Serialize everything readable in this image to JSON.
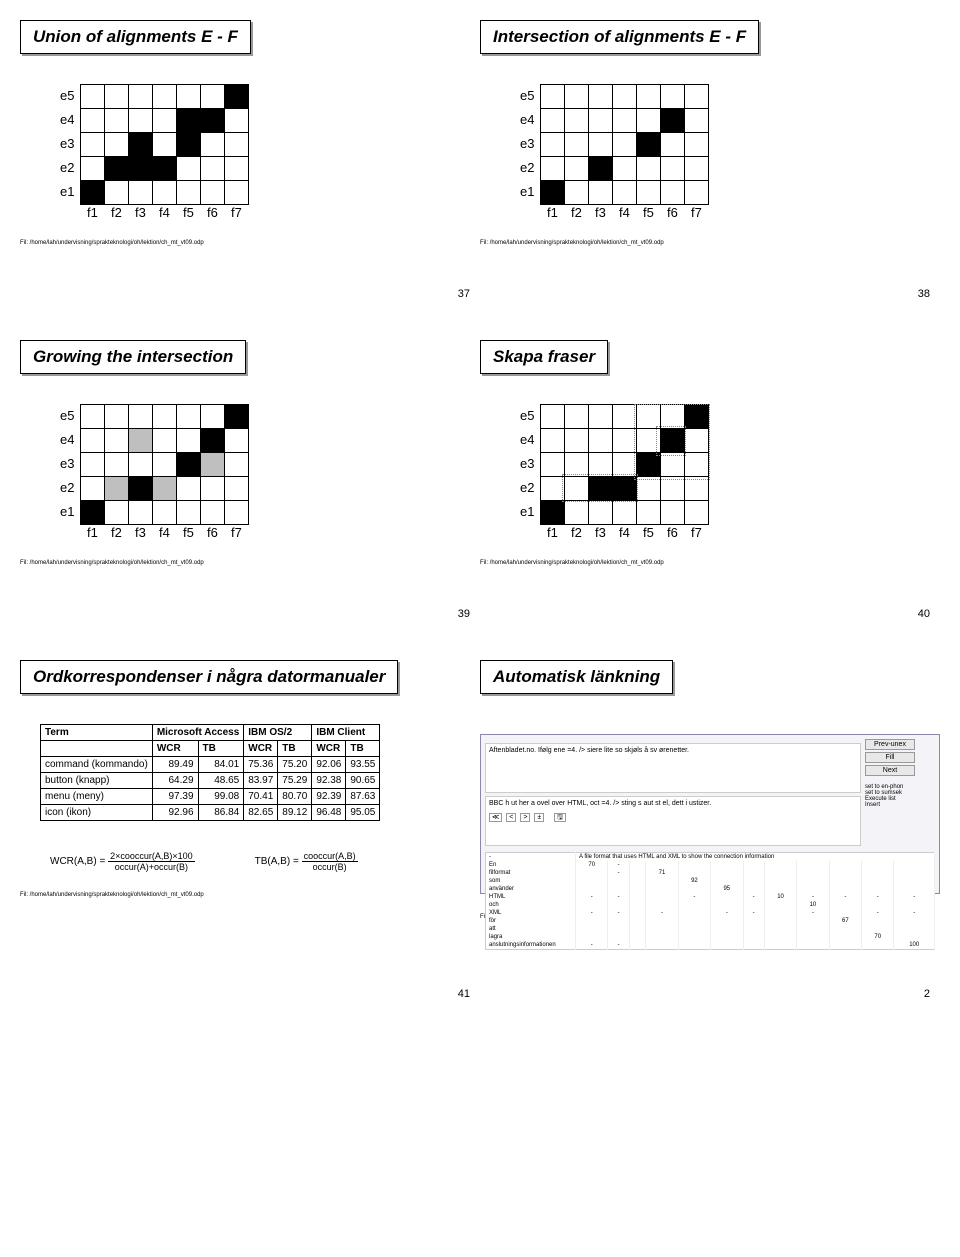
{
  "footer_path": "Fil: /home/lah/undervisning/sprakteknologi/oh/lektion/ch_mt_vt09.odp",
  "slides": [
    {
      "title": "Union of alignments E - F",
      "page": "37",
      "grid": {
        "rows": [
          "e5",
          "e4",
          "e3",
          "e2",
          "e1"
        ],
        "cols": [
          "f1",
          "f2",
          "f3",
          "f4",
          "f5",
          "f6",
          "f7"
        ],
        "cells": [
          [
            "",
            "",
            "",
            "",
            "",
            "",
            "b"
          ],
          [
            "",
            "",
            "",
            "",
            "b",
            "b",
            ""
          ],
          [
            "",
            "",
            "b",
            "",
            "b",
            "",
            ""
          ],
          [
            "",
            "b",
            "b",
            "b",
            "",
            "",
            ""
          ],
          [
            "b",
            "",
            "",
            "",
            "",
            "",
            ""
          ]
        ]
      }
    },
    {
      "title": "Intersection of alignments E - F",
      "page": "38",
      "grid": {
        "rows": [
          "e5",
          "e4",
          "e3",
          "e2",
          "e1"
        ],
        "cols": [
          "f1",
          "f2",
          "f3",
          "f4",
          "f5",
          "f6",
          "f7"
        ],
        "cells": [
          [
            "",
            "",
            "",
            "",
            "",
            "",
            ""
          ],
          [
            "",
            "",
            "",
            "",
            "",
            "b",
            ""
          ],
          [
            "",
            "",
            "",
            "",
            "b",
            "",
            ""
          ],
          [
            "",
            "",
            "b",
            "",
            "",
            "",
            ""
          ],
          [
            "b",
            "",
            "",
            "",
            "",
            "",
            ""
          ]
        ]
      }
    },
    {
      "title": "Growing the intersection",
      "page": "39",
      "grid": {
        "rows": [
          "e5",
          "e4",
          "e3",
          "e2",
          "e1"
        ],
        "cols": [
          "f1",
          "f2",
          "f3",
          "f4",
          "f5",
          "f6",
          "f7"
        ],
        "cells": [
          [
            "",
            "",
            "",
            "",
            "",
            "",
            "b"
          ],
          [
            "",
            "",
            "g",
            "",
            "",
            "b",
            ""
          ],
          [
            "",
            "",
            "",
            "",
            "b",
            "g",
            ""
          ],
          [
            "",
            "g",
            "b",
            "g",
            "",
            "",
            ""
          ],
          [
            "b",
            "",
            "",
            "",
            "",
            "",
            ""
          ]
        ]
      }
    },
    {
      "title": "Skapa fraser",
      "page": "40",
      "grid": {
        "rows": [
          "e5",
          "e4",
          "e3",
          "e2",
          "e1"
        ],
        "cols": [
          "f1",
          "f2",
          "f3",
          "f4",
          "f5",
          "f6",
          "f7"
        ],
        "cells": [
          [
            "",
            "",
            "",
            "",
            "",
            "",
            "b"
          ],
          [
            "",
            "",
            "",
            "",
            "",
            "b",
            ""
          ],
          [
            "",
            "",
            "",
            "",
            "b",
            "",
            ""
          ],
          [
            "",
            "",
            "b",
            "b",
            "",
            "",
            ""
          ],
          [
            "b",
            "",
            "",
            "",
            "",
            "",
            ""
          ]
        ]
      }
    },
    {
      "title": "Ordkorrespondenser i några datormanualer",
      "page": "41",
      "table": {
        "header1": [
          "Term",
          "Microsoft Access",
          "IBM OS/2",
          "IBM Client"
        ],
        "header2": [
          "",
          "WCR",
          "TB",
          "WCR",
          "TB",
          "WCR",
          "TB"
        ],
        "rows": [
          [
            "command (kommando)",
            "89.49",
            "84.01",
            "75.36",
            "75.20",
            "92.06",
            "93.55"
          ],
          [
            "button (knapp)",
            "64.29",
            "48.65",
            "83.97",
            "75.29",
            "92.38",
            "90.65"
          ],
          [
            "menu (meny)",
            "97.39",
            "99.08",
            "70.41",
            "80.70",
            "92.39",
            "87.63"
          ],
          [
            "icon (ikon)",
            "92.96",
            "86.84",
            "82.65",
            "89.12",
            "96.48",
            "95.05"
          ]
        ]
      },
      "formulas": {
        "wcr_label": "WCR(A,B)  =",
        "wcr_num": "2×cooccur(A,B)×100",
        "wcr_den": "occur(A)+occur(B)",
        "tb_label": "TB(A,B) =",
        "tb_num": "cooccur(A,B)",
        "tb_den": "occur(B)"
      }
    },
    {
      "title": "Automatisk länkning",
      "page": "2",
      "screenshot": {
        "line1": "Aftenbladet.no. Ifølg ene =4. /> siere lite so skjøls å sv ørenetter.",
        "line2": "BBC h ut her a ovel over HTML, oct =4. /> sting s aut st el, dett i ustizer.",
        "buttons": [
          "Prev-unex",
          "Fill",
          "Next"
        ],
        "side_items": [
          "set to en-phon",
          "set to sumsek",
          "Execute list",
          "Insert"
        ],
        "table_header": [
          "",
          "A file format that uses HTML and XML to show the connection information",
          ""
        ],
        "table_rows": [
          [
            "En",
            "70",
            "-",
            "",
            "",
            "",
            "",
            "",
            "",
            "",
            "",
            "",
            ""
          ],
          [
            "filformat",
            "",
            "-",
            "",
            "71",
            "",
            "",
            "",
            "",
            "",
            "",
            "",
            ""
          ],
          [
            "som",
            "",
            "",
            "",
            "",
            "92",
            "",
            "",
            "",
            "",
            "",
            "",
            ""
          ],
          [
            "använder",
            "",
            "",
            "",
            "",
            "",
            "95",
            "",
            "",
            "",
            "",
            "",
            ""
          ],
          [
            "HTML",
            "-",
            "-",
            "",
            "",
            "-",
            "",
            "-",
            "10",
            "-",
            "-",
            "-",
            "-"
          ],
          [
            "och",
            "",
            "",
            "",
            "",
            "",
            "",
            "",
            "",
            "10",
            "",
            "",
            ""
          ],
          [
            "XML",
            "-",
            "-",
            "",
            "-",
            "",
            "-",
            "-",
            "",
            "-",
            "",
            "-",
            "-"
          ],
          [
            "för",
            "",
            "",
            "",
            "",
            "",
            "",
            "",
            "",
            "",
            "67",
            "",
            ""
          ],
          [
            "att",
            "",
            "",
            "",
            "",
            "",
            "",
            "",
            "",
            "",
            "",
            "",
            ""
          ],
          [
            "lagra",
            "",
            "",
            "",
            "",
            "",
            "",
            "",
            "",
            "",
            "",
            "70",
            ""
          ],
          [
            "anslutningsinformationen",
            "-",
            "-",
            "",
            "",
            "",
            "",
            "",
            "",
            "",
            "",
            "",
            "100"
          ]
        ]
      }
    }
  ]
}
